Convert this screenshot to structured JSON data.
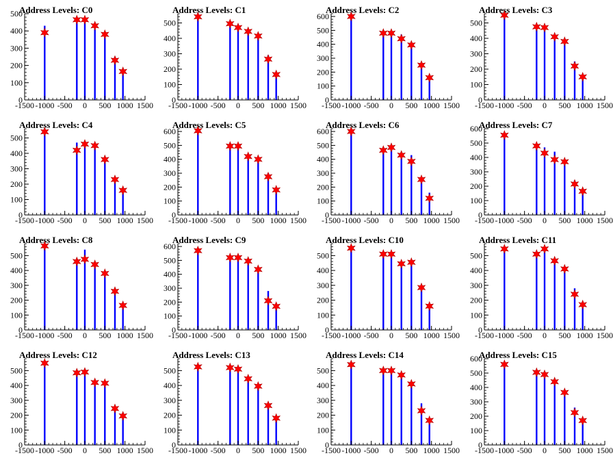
{
  "chart_data": [
    {
      "type": "bar",
      "title": "Address Levels: C0",
      "xlim": [
        -1500,
        1500
      ],
      "ylim": [
        0,
        500
      ],
      "yticks": [
        0,
        100,
        200,
        300,
        400,
        500
      ],
      "xticks": [
        -1500,
        -1000,
        -500,
        0,
        500,
        1000,
        1500
      ],
      "bars": [
        [
          -1000,
          430
        ],
        [
          -200,
          470
        ],
        [
          0,
          470
        ],
        [
          250,
          410
        ],
        [
          500,
          390
        ],
        [
          750,
          250
        ],
        [
          950,
          150
        ]
      ],
      "markers": [
        [
          -1000,
          390
        ],
        [
          -200,
          465
        ],
        [
          0,
          465
        ],
        [
          250,
          430
        ],
        [
          500,
          380
        ],
        [
          750,
          230
        ],
        [
          950,
          165
        ]
      ]
    },
    {
      "type": "bar",
      "title": "Address Levels: C1",
      "xlim": [
        -1500,
        1500
      ],
      "ylim": [
        0,
        560
      ],
      "yticks": [
        0,
        100,
        200,
        300,
        400,
        500
      ],
      "xticks": [
        -1500,
        -1000,
        -500,
        0,
        500,
        1000,
        1500
      ],
      "bars": [
        [
          -1000,
          540
        ],
        [
          -200,
          500
        ],
        [
          0,
          490
        ],
        [
          250,
          450
        ],
        [
          500,
          410
        ],
        [
          750,
          290
        ],
        [
          950,
          160
        ]
      ],
      "markers": [
        [
          -1000,
          540
        ],
        [
          -200,
          495
        ],
        [
          0,
          470
        ],
        [
          250,
          445
        ],
        [
          500,
          415
        ],
        [
          750,
          265
        ],
        [
          950,
          165
        ]
      ]
    },
    {
      "type": "bar",
      "title": "Address Levels: C2",
      "xlim": [
        -1500,
        1500
      ],
      "ylim": [
        0,
        620
      ],
      "yticks": [
        0,
        100,
        200,
        300,
        400,
        500,
        600
      ],
      "xticks": [
        -1500,
        -1000,
        -500,
        0,
        500,
        1000,
        1500
      ],
      "bars": [
        [
          -1000,
          600
        ],
        [
          -200,
          470
        ],
        [
          0,
          490
        ],
        [
          250,
          470
        ],
        [
          500,
          390
        ],
        [
          750,
          230
        ],
        [
          950,
          160
        ]
      ],
      "markers": [
        [
          -1000,
          600
        ],
        [
          -200,
          480
        ],
        [
          0,
          480
        ],
        [
          250,
          440
        ],
        [
          500,
          395
        ],
        [
          750,
          250
        ],
        [
          950,
          160
        ]
      ]
    },
    {
      "type": "bar",
      "title": "Address Levels: C3",
      "xlim": [
        -1500,
        1500
      ],
      "ylim": [
        0,
        560
      ],
      "yticks": [
        0,
        100,
        200,
        300,
        400,
        500
      ],
      "xticks": [
        -1500,
        -1000,
        -500,
        0,
        500,
        1000,
        1500
      ],
      "bars": [
        [
          -1000,
          560
        ],
        [
          -200,
          470
        ],
        [
          0,
          470
        ],
        [
          250,
          420
        ],
        [
          500,
          380
        ],
        [
          750,
          250
        ],
        [
          950,
          160
        ]
      ],
      "markers": [
        [
          -1000,
          550
        ],
        [
          -200,
          475
        ],
        [
          0,
          470
        ],
        [
          250,
          410
        ],
        [
          500,
          380
        ],
        [
          750,
          220
        ],
        [
          950,
          150
        ]
      ]
    },
    {
      "type": "bar",
      "title": "Address Levels: C4",
      "xlim": [
        -1500,
        1500
      ],
      "ylim": [
        0,
        560
      ],
      "yticks": [
        0,
        100,
        200,
        300,
        400,
        500
      ],
      "xticks": [
        -1500,
        -1000,
        -500,
        0,
        500,
        1000,
        1500
      ],
      "bars": [
        [
          -1000,
          550
        ],
        [
          -200,
          470
        ],
        [
          0,
          460
        ],
        [
          250,
          450
        ],
        [
          500,
          370
        ],
        [
          750,
          220
        ],
        [
          950,
          140
        ]
      ],
      "markers": [
        [
          -1000,
          540
        ],
        [
          -200,
          420
        ],
        [
          0,
          460
        ],
        [
          250,
          450
        ],
        [
          500,
          360
        ],
        [
          750,
          230
        ],
        [
          950,
          160
        ]
      ]
    },
    {
      "type": "bar",
      "title": "Address Levels: C5",
      "xlim": [
        -1500,
        1500
      ],
      "ylim": [
        0,
        620
      ],
      "yticks": [
        0,
        100,
        200,
        300,
        400,
        500,
        600
      ],
      "xticks": [
        -1500,
        -1000,
        -500,
        0,
        500,
        1000,
        1500
      ],
      "bars": [
        [
          -1000,
          610
        ],
        [
          -200,
          500
        ],
        [
          0,
          500
        ],
        [
          250,
          430
        ],
        [
          500,
          400
        ],
        [
          750,
          300
        ],
        [
          950,
          170
        ]
      ],
      "markers": [
        [
          -1000,
          605
        ],
        [
          -200,
          495
        ],
        [
          0,
          495
        ],
        [
          250,
          420
        ],
        [
          500,
          400
        ],
        [
          750,
          275
        ],
        [
          950,
          180
        ]
      ]
    },
    {
      "type": "bar",
      "title": "Address Levels: C6",
      "xlim": [
        -1500,
        1500
      ],
      "ylim": [
        0,
        620
      ],
      "yticks": [
        0,
        100,
        200,
        300,
        400,
        500,
        600
      ],
      "xticks": [
        -1500,
        -1000,
        -500,
        0,
        500,
        1000,
        1500
      ],
      "bars": [
        [
          -1000,
          620
        ],
        [
          -200,
          470
        ],
        [
          0,
          490
        ],
        [
          250,
          440
        ],
        [
          500,
          430
        ],
        [
          750,
          270
        ],
        [
          950,
          160
        ]
      ],
      "markers": [
        [
          -1000,
          600
        ],
        [
          -200,
          465
        ],
        [
          0,
          485
        ],
        [
          250,
          430
        ],
        [
          500,
          385
        ],
        [
          750,
          255
        ],
        [
          950,
          120
        ]
      ]
    },
    {
      "type": "bar",
      "title": "Address Levels: C7",
      "xlim": [
        -1500,
        1500
      ],
      "ylim": [
        0,
        600
      ],
      "yticks": [
        0,
        100,
        200,
        300,
        400,
        500,
        600
      ],
      "xticks": [
        -1500,
        -1000,
        -500,
        0,
        500,
        1000,
        1500
      ],
      "bars": [
        [
          -1000,
          570
        ],
        [
          -200,
          490
        ],
        [
          0,
          470
        ],
        [
          250,
          440
        ],
        [
          500,
          380
        ],
        [
          750,
          240
        ],
        [
          950,
          150
        ]
      ],
      "markers": [
        [
          -1000,
          555
        ],
        [
          -200,
          480
        ],
        [
          0,
          430
        ],
        [
          250,
          385
        ],
        [
          500,
          370
        ],
        [
          750,
          215
        ],
        [
          950,
          165
        ]
      ]
    },
    {
      "type": "bar",
      "title": "Address Levels: C8",
      "xlim": [
        -1500,
        1500
      ],
      "ylim": [
        0,
        580
      ],
      "yticks": [
        0,
        100,
        200,
        300,
        400,
        500
      ],
      "xticks": [
        -1500,
        -1000,
        -500,
        0,
        500,
        1000,
        1500
      ],
      "bars": [
        [
          -1000,
          560
        ],
        [
          -200,
          480
        ],
        [
          0,
          540
        ],
        [
          250,
          440
        ],
        [
          500,
          390
        ],
        [
          750,
          270
        ],
        [
          950,
          160
        ]
      ],
      "markers": [
        [
          -1000,
          565
        ],
        [
          -200,
          460
        ],
        [
          0,
          475
        ],
        [
          250,
          440
        ],
        [
          500,
          380
        ],
        [
          750,
          260
        ],
        [
          950,
          165
        ]
      ]
    },
    {
      "type": "bar",
      "title": "Address Levels: C9",
      "xlim": [
        -1500,
        1500
      ],
      "ylim": [
        0,
        620
      ],
      "yticks": [
        0,
        100,
        200,
        300,
        400,
        500,
        600
      ],
      "xticks": [
        -1500,
        -1000,
        -500,
        0,
        500,
        1000,
        1500
      ],
      "bars": [
        [
          -1000,
          580
        ],
        [
          -200,
          520
        ],
        [
          0,
          520
        ],
        [
          250,
          510
        ],
        [
          500,
          440
        ],
        [
          750,
          280
        ],
        [
          950,
          180
        ]
      ],
      "markers": [
        [
          -1000,
          570
        ],
        [
          -200,
          520
        ],
        [
          0,
          520
        ],
        [
          250,
          495
        ],
        [
          500,
          435
        ],
        [
          750,
          210
        ],
        [
          950,
          170
        ]
      ]
    },
    {
      "type": "bar",
      "title": "Address Levels: C10",
      "xlim": [
        -1500,
        1500
      ],
      "ylim": [
        0,
        580
      ],
      "yticks": [
        0,
        100,
        200,
        300,
        400,
        500
      ],
      "xticks": [
        -1500,
        -1000,
        -500,
        0,
        500,
        1000,
        1500
      ],
      "bars": [
        [
          -1000,
          560
        ],
        [
          -200,
          510
        ],
        [
          0,
          510
        ],
        [
          250,
          460
        ],
        [
          500,
          460
        ],
        [
          750,
          300
        ],
        [
          950,
          160
        ]
      ],
      "markers": [
        [
          -1000,
          550
        ],
        [
          -200,
          510
        ],
        [
          0,
          510
        ],
        [
          250,
          445
        ],
        [
          500,
          455
        ],
        [
          750,
          285
        ],
        [
          950,
          160
        ]
      ]
    },
    {
      "type": "bar",
      "title": "Address Levels: C11",
      "xlim": [
        -1500,
        1500
      ],
      "ylim": [
        0,
        580
      ],
      "yticks": [
        0,
        100,
        200,
        300,
        400,
        500
      ],
      "xticks": [
        -1500,
        -1000,
        -500,
        0,
        500,
        1000,
        1500
      ],
      "bars": [
        [
          -1000,
          560
        ],
        [
          -200,
          510
        ],
        [
          0,
          560
        ],
        [
          250,
          470
        ],
        [
          500,
          430
        ],
        [
          750,
          280
        ],
        [
          950,
          180
        ]
      ],
      "markers": [
        [
          -1000,
          545
        ],
        [
          -200,
          510
        ],
        [
          0,
          545
        ],
        [
          250,
          465
        ],
        [
          500,
          410
        ],
        [
          750,
          240
        ],
        [
          950,
          170
        ]
      ]
    },
    {
      "type": "bar",
      "title": "Address Levels: C12",
      "xlim": [
        -1500,
        1500
      ],
      "ylim": [
        0,
        580
      ],
      "yticks": [
        0,
        100,
        200,
        300,
        400,
        500
      ],
      "xticks": [
        -1500,
        -1000,
        -500,
        0,
        500,
        1000,
        1500
      ],
      "bars": [
        [
          -1000,
          560
        ],
        [
          -200,
          490
        ],
        [
          0,
          500
        ],
        [
          250,
          420
        ],
        [
          500,
          410
        ],
        [
          750,
          260
        ],
        [
          950,
          200
        ]
      ],
      "markers": [
        [
          -1000,
          550
        ],
        [
          -200,
          485
        ],
        [
          0,
          490
        ],
        [
          250,
          420
        ],
        [
          500,
          415
        ],
        [
          750,
          245
        ],
        [
          950,
          195
        ]
      ]
    },
    {
      "type": "bar",
      "title": "Address Levels: C13",
      "xlim": [
        -1500,
        1500
      ],
      "ylim": [
        0,
        580
      ],
      "yticks": [
        0,
        100,
        200,
        300,
        400,
        500
      ],
      "xticks": [
        -1500,
        -1000,
        -500,
        0,
        500,
        1000,
        1500
      ],
      "bars": [
        [
          -1000,
          540
        ],
        [
          -200,
          520
        ],
        [
          0,
          520
        ],
        [
          250,
          460
        ],
        [
          500,
          400
        ],
        [
          750,
          280
        ],
        [
          950,
          180
        ]
      ],
      "markers": [
        [
          -1000,
          525
        ],
        [
          -200,
          520
        ],
        [
          0,
          510
        ],
        [
          250,
          445
        ],
        [
          500,
          395
        ],
        [
          750,
          265
        ],
        [
          950,
          180
        ]
      ]
    },
    {
      "type": "bar",
      "title": "Address Levels: C14",
      "xlim": [
        -1500,
        1500
      ],
      "ylim": [
        0,
        580
      ],
      "yticks": [
        0,
        100,
        200,
        300,
        400,
        500
      ],
      "xticks": [
        -1500,
        -1000,
        -500,
        0,
        500,
        1000,
        1500
      ],
      "bars": [
        [
          -1000,
          560
        ],
        [
          -200,
          510
        ],
        [
          0,
          510
        ],
        [
          250,
          470
        ],
        [
          500,
          420
        ],
        [
          750,
          280
        ],
        [
          950,
          170
        ]
      ],
      "markers": [
        [
          -1000,
          540
        ],
        [
          -200,
          500
        ],
        [
          0,
          500
        ],
        [
          250,
          470
        ],
        [
          500,
          410
        ],
        [
          750,
          230
        ],
        [
          950,
          165
        ]
      ]
    },
    {
      "type": "bar",
      "title": "Address Levels: C15",
      "xlim": [
        -1500,
        1500
      ],
      "ylim": [
        0,
        600
      ],
      "yticks": [
        0,
        100,
        200,
        300,
        400,
        500,
        600
      ],
      "xticks": [
        -1500,
        -1000,
        -500,
        0,
        500,
        1000,
        1500
      ],
      "bars": [
        [
          -1000,
          560
        ],
        [
          -200,
          510
        ],
        [
          0,
          500
        ],
        [
          250,
          450
        ],
        [
          500,
          380
        ],
        [
          750,
          260
        ],
        [
          950,
          180
        ]
      ],
      "markers": [
        [
          -1000,
          560
        ],
        [
          -200,
          505
        ],
        [
          0,
          490
        ],
        [
          250,
          440
        ],
        [
          500,
          365
        ],
        [
          750,
          225
        ],
        [
          950,
          170
        ]
      ]
    }
  ],
  "colors": {
    "bar": "#0000ff",
    "marker": "#ff0000",
    "axis": "#000000",
    "text": "#000000"
  }
}
